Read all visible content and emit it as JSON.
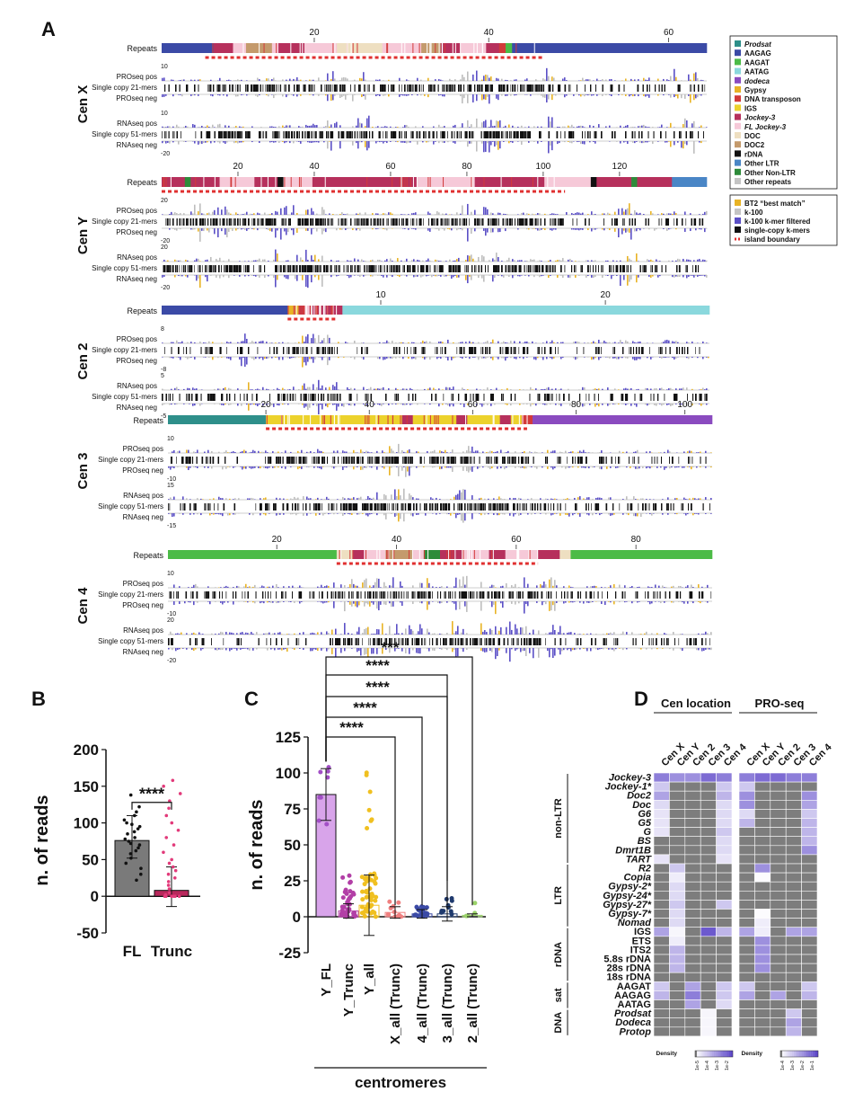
{
  "panel_letters": {
    "a": "A",
    "b": "B",
    "c": "C",
    "d": "D"
  },
  "track_labels": {
    "repeats": "Repeats",
    "pro_pos": "PROseq pos",
    "pro_mid": "Single copy 21-mers",
    "pro_neg": "PROseq neg",
    "rna_pos": "RNAseq pos",
    "rna_mid": "Single copy 51-mers",
    "rna_neg": "RNAseq neg"
  },
  "centromeres": [
    {
      "label": "Cen X",
      "ticks": [
        "20",
        "40",
        "60"
      ],
      "pro_top": "10",
      "pro_bot": "",
      "rna_top": "10",
      "rna_bot": "-20"
    },
    {
      "label": "Cen Y",
      "ticks": [
        "20",
        "40",
        "60",
        "80",
        "100",
        "120"
      ],
      "pro_top": "20",
      "pro_bot": "-20",
      "rna_top": "20",
      "rna_bot": "-20"
    },
    {
      "label": "Cen 2",
      "ticks": [
        "10",
        "20"
      ],
      "pro_top": "8",
      "pro_bot": "-8",
      "rna_top": "5",
      "rna_bot": "-5"
    },
    {
      "label": "Cen 3",
      "ticks": [
        "20",
        "40",
        "60",
        "80",
        "100"
      ],
      "pro_top": "10",
      "pro_bot": "-10",
      "rna_top": "15",
      "rna_bot": "-15"
    },
    {
      "label": "Cen 4",
      "ticks": [
        "20",
        "40",
        "60",
        "80"
      ],
      "pro_top": "10",
      "pro_bot": "-10",
      "rna_top": "20",
      "rna_bot": "-20"
    }
  ],
  "legend_repeats": [
    {
      "label": "Prodsat",
      "color": "#2e8f8a",
      "italic": true
    },
    {
      "label": "AAGAG",
      "color": "#3b4aa6",
      "italic": false
    },
    {
      "label": "AAGAT",
      "color": "#4cbb47",
      "italic": false
    },
    {
      "label": "AATAG",
      "color": "#8ad8dd",
      "italic": false
    },
    {
      "label": "dodeca",
      "color": "#8a4bbf",
      "italic": true
    },
    {
      "label": "Gypsy",
      "color": "#e8b325",
      "italic": false
    },
    {
      "label": "DNA transposon",
      "color": "#d23a3a",
      "italic": false
    },
    {
      "label": "IGS",
      "color": "#ecd22c",
      "italic": false
    },
    {
      "label": "Jockey-3",
      "color": "#b6305c",
      "italic": true
    },
    {
      "label": "FL Jockey-3",
      "color": "#f6c9d8",
      "italic": true
    },
    {
      "label": "DOC",
      "color": "#eedfc1",
      "italic": false
    },
    {
      "label": "DOC2",
      "color": "#c49a6c",
      "italic": false
    },
    {
      "label": "rDNA",
      "color": "#111111",
      "italic": false
    },
    {
      "label": "Other LTR",
      "color": "#4a86c6",
      "italic": false
    },
    {
      "label": "Other Non-LTR",
      "color": "#2e8b3a",
      "italic": false
    },
    {
      "label": "Other repeats",
      "color": "#c4c4c4",
      "italic": false
    }
  ],
  "legend_tracks": [
    {
      "label": "BT2 “best match”",
      "color": "#e8b325",
      "kind": "box"
    },
    {
      "label": "k-100",
      "color": "#c4c4c4",
      "kind": "box"
    },
    {
      "label": "k-100 k-mer filtered",
      "color": "#5b4fc6",
      "kind": "box"
    },
    {
      "label": "single-copy k-mers",
      "color": "#111111",
      "kind": "box"
    },
    {
      "label": "island boundary",
      "color": "#e03030",
      "kind": "dash"
    }
  ],
  "colors": {
    "purple": "#5b4fc6",
    "gray": "#bdbdbd",
    "gold": "#e8b325",
    "black": "#111111",
    "red": "#e03030",
    "y_fl": "#a24fc6",
    "y_trunc": "#b23fa6",
    "y_all": "#f0c020",
    "x_all": "#f08080",
    "c4_all": "#3b4aa6",
    "c3_all": "#1f3a6e",
    "c2_all": "#9bd36a"
  },
  "chart_data": [
    {
      "type": "bar",
      "panel": "B",
      "categories": [
        "FL",
        "Trunc"
      ],
      "values": [
        76,
        8
      ],
      "error": [
        [
          52,
          110
        ],
        [
          -14,
          40
        ]
      ],
      "ylabel": "n. of reads",
      "ylim": [
        -50,
        200
      ],
      "yticks": [
        "200",
        "150",
        "100",
        "50",
        "0",
        "-50"
      ],
      "significance": "****",
      "points_FL": [
        138,
        122,
        115,
        110,
        104,
        100,
        98,
        95,
        92,
        88,
        85,
        80,
        78,
        75,
        72,
        70,
        66,
        62,
        58,
        52,
        45,
        38,
        30,
        22
      ],
      "points_Trunc": [
        158,
        150,
        140,
        130,
        120,
        110,
        100,
        90,
        80,
        70,
        60,
        50,
        45,
        40,
        35,
        30,
        25,
        20,
        15,
        10,
        5,
        2,
        0,
        0,
        0,
        0,
        0,
        0
      ]
    },
    {
      "type": "bar",
      "panel": "C",
      "categories": [
        "Y_FL",
        "Y_Trunc",
        "Y_all",
        "X_all (Trunc)",
        "4_all (Trunc)",
        "3_all (Trunc)",
        "2_all (Trunc)"
      ],
      "values": [
        85,
        4,
        8,
        3,
        2,
        2,
        1
      ],
      "ylabel": "n. of reads",
      "xlabel": "centromeres",
      "ylim": [
        -25,
        125
      ],
      "yticks": [
        "125",
        "100",
        "75",
        "50",
        "25",
        "0",
        "-25"
      ],
      "significance": [
        "****",
        "****",
        "****",
        "****",
        "***"
      ]
    },
    {
      "type": "heatmap",
      "panel": "D",
      "groups": [
        "Cen location",
        "PRO-seq"
      ],
      "columns": [
        "Cen X",
        "Cen Y",
        "Cen 2",
        "Cen 3",
        "Cen 4"
      ],
      "rows": [
        "Jockey-3",
        "Jockey-1*",
        "Doc2",
        "Doc",
        "G6",
        "G5",
        "G",
        "BS",
        "Dmrt1B",
        "TART",
        "R2",
        "Copia",
        "Gypsy-2*",
        "Gypsy-24*",
        "Gypsy-27*",
        "Gypsy-7*",
        "Nomad",
        "IGS",
        "ETS",
        "ITS2",
        "5.8s rDNA",
        "28s rDNA",
        "18s rDNA",
        "AAGAT",
        "AAGAG",
        "AATAG",
        "Prodsat",
        "Dodeca",
        "Protop"
      ],
      "row_groups": [
        {
          "label": "non-LTR",
          "from": 0,
          "to": 9
        },
        {
          "label": "LTR",
          "from": 10,
          "to": 16
        },
        {
          "label": "rDNA",
          "from": 17,
          "to": 22
        },
        {
          "label": "sat",
          "from": 23,
          "to": 25
        },
        {
          "label": "DNA",
          "from": 26,
          "to": 28
        }
      ],
      "legend_title": "Density",
      "legend_ticks_left": [
        "1e-5",
        "1e-4",
        "1e-3",
        "1e-2"
      ],
      "legend_ticks_right": [
        "1e-4",
        "1e-3",
        "1e-2",
        "1e-1"
      ],
      "left": [
        [
          0.7,
          0.6,
          0.6,
          0.8,
          0.7
        ],
        [
          0.3,
          0,
          0,
          0,
          0.3
        ],
        [
          0.5,
          0,
          0,
          0,
          0.4
        ],
        [
          0.2,
          0,
          0,
          0,
          0.2
        ],
        [
          0.15,
          0,
          0,
          0,
          0.2
        ],
        [
          0.15,
          0,
          0,
          0,
          0.2
        ],
        [
          0.15,
          0,
          0,
          0,
          0.3
        ],
        [
          0,
          0,
          0,
          0,
          0.2
        ],
        [
          0,
          0,
          0,
          0,
          0.2
        ],
        [
          0.15,
          0,
          0,
          0,
          0.15
        ],
        [
          0,
          0.3,
          0,
          0,
          0
        ],
        [
          0,
          0.1,
          0,
          0,
          0
        ],
        [
          0,
          0.2,
          0,
          0,
          0
        ],
        [
          0,
          0.2,
          0,
          0,
          0
        ],
        [
          0,
          0.3,
          0,
          0,
          0.3
        ],
        [
          0,
          0.2,
          0,
          0,
          0
        ],
        [
          0,
          0.2,
          0,
          0,
          0
        ],
        [
          0.5,
          0.05,
          0,
          0.9,
          0.4
        ],
        [
          0,
          0.1,
          0,
          0,
          0
        ],
        [
          0,
          0.4,
          0,
          0,
          0
        ],
        [
          0,
          0.4,
          0,
          0,
          0
        ],
        [
          0,
          0.4,
          0,
          0,
          0
        ],
        [
          0,
          0,
          0,
          0,
          0
        ],
        [
          0.3,
          0,
          0.5,
          0,
          0.3
        ],
        [
          0.4,
          0,
          0.7,
          0,
          0.3
        ],
        [
          0,
          0,
          0.5,
          0,
          0.2
        ],
        [
          0,
          0,
          0,
          0.05,
          0
        ],
        [
          0,
          0,
          0,
          0.05,
          0
        ],
        [
          0,
          0,
          0,
          0.05,
          0
        ]
      ],
      "right": [
        [
          0.7,
          0.8,
          0.8,
          0.7,
          0.7
        ],
        [
          0.3,
          0,
          0,
          0,
          0
        ],
        [
          0.6,
          0,
          0,
          0,
          0.6
        ],
        [
          0.6,
          0,
          0,
          0,
          0.5
        ],
        [
          0.2,
          0,
          0,
          0,
          0.3
        ],
        [
          0.4,
          0,
          0,
          0,
          0.4
        ],
        [
          0,
          0,
          0,
          0,
          0.4
        ],
        [
          0,
          0,
          0,
          0,
          0.4
        ],
        [
          0,
          0,
          0,
          0,
          0.6
        ],
        [
          0,
          0,
          0,
          0,
          0
        ],
        [
          0,
          0.6,
          0,
          0,
          0
        ],
        [
          0,
          0.02,
          0,
          0,
          0
        ],
        [
          0,
          0,
          0,
          0,
          0
        ],
        [
          0,
          0,
          0,
          0,
          0
        ],
        [
          0,
          0,
          0,
          0,
          0
        ],
        [
          0,
          0.02,
          0,
          0,
          0
        ],
        [
          0,
          0.1,
          0,
          0,
          0
        ],
        [
          0.5,
          0.1,
          0,
          0.5,
          0.5
        ],
        [
          0,
          0.6,
          0,
          0,
          0
        ],
        [
          0,
          0.6,
          0,
          0,
          0
        ],
        [
          0,
          0.6,
          0,
          0,
          0
        ],
        [
          0,
          0.6,
          0,
          0,
          0
        ],
        [
          0,
          0,
          0,
          0,
          0
        ],
        [
          0.3,
          0,
          0,
          0,
          0.3
        ],
        [
          0.5,
          0,
          0.5,
          0,
          0.4
        ],
        [
          0,
          0,
          0,
          0,
          0
        ],
        [
          0,
          0,
          0,
          0.3,
          0
        ],
        [
          0,
          0,
          0,
          0.5,
          0
        ],
        [
          0,
          0,
          0,
          0.4,
          0
        ]
      ]
    }
  ]
}
